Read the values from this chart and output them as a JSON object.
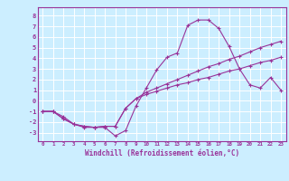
{
  "xlabel": "Windchill (Refroidissement éolien,°C)",
  "bg_color": "#cceeff",
  "grid_color": "#ffffff",
  "line_color": "#993399",
  "line1_x": [
    0,
    1,
    2,
    3,
    4,
    5,
    6,
    7,
    8,
    9,
    10,
    11,
    12,
    13,
    14,
    15,
    16,
    17,
    18,
    19,
    20,
    21,
    22,
    23
  ],
  "line1_y": [
    -1.0,
    -1.0,
    -1.5,
    -2.2,
    -2.5,
    -2.5,
    -2.5,
    -3.3,
    -2.8,
    -0.5,
    1.2,
    2.9,
    4.1,
    4.5,
    7.1,
    7.6,
    7.6,
    6.8,
    5.1,
    3.0,
    1.5,
    1.2,
    2.2,
    1.0
  ],
  "line2_x": [
    0,
    1,
    2,
    3,
    4,
    5,
    6,
    7,
    8,
    9,
    10,
    11,
    12,
    13,
    14,
    15,
    16,
    17,
    18,
    19,
    20,
    21,
    22,
    23
  ],
  "line2_y": [
    -1.0,
    -1.0,
    -1.7,
    -2.2,
    -2.4,
    -2.5,
    -2.4,
    -2.4,
    -0.7,
    0.2,
    0.8,
    1.2,
    1.6,
    2.0,
    2.4,
    2.8,
    3.2,
    3.5,
    3.9,
    4.2,
    4.6,
    5.0,
    5.3,
    5.6
  ],
  "line3_x": [
    0,
    1,
    2,
    3,
    4,
    5,
    6,
    7,
    8,
    9,
    10,
    11,
    12,
    13,
    14,
    15,
    16,
    17,
    18,
    19,
    20,
    21,
    22,
    23
  ],
  "line3_y": [
    -1.0,
    -1.0,
    -1.7,
    -2.2,
    -2.4,
    -2.5,
    -2.4,
    -2.4,
    -0.7,
    0.2,
    0.6,
    0.9,
    1.2,
    1.5,
    1.7,
    2.0,
    2.2,
    2.5,
    2.8,
    3.0,
    3.3,
    3.6,
    3.8,
    4.1
  ],
  "xlim": [
    -0.5,
    23.5
  ],
  "ylim": [
    -3.8,
    8.8
  ],
  "yticks": [
    -3,
    -2,
    -1,
    0,
    1,
    2,
    3,
    4,
    5,
    6,
    7,
    8
  ],
  "xticks": [
    0,
    1,
    2,
    3,
    4,
    5,
    6,
    7,
    8,
    9,
    10,
    11,
    12,
    13,
    14,
    15,
    16,
    17,
    18,
    19,
    20,
    21,
    22,
    23
  ]
}
